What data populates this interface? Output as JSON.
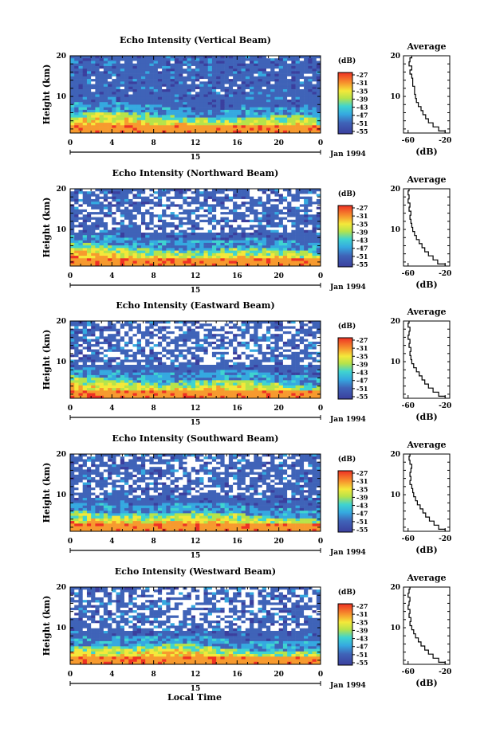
{
  "figure": {
    "xlabel": "Local Time",
    "date_label": "Jan 1994",
    "day_label": "15",
    "colorbar_unit": "(dB)",
    "colorbar_ticks": [
      "-27",
      "-31",
      "-35",
      "-39",
      "-43",
      "-47",
      "-51",
      "-55"
    ],
    "colors": {
      "deep_blue": "#3a4fa3",
      "cyan": "#35c9e0",
      "yellow": "#f4e83a",
      "orange": "#f79a2e",
      "red": "#ee3124"
    }
  },
  "chart_data": [
    {
      "type": "heatmap",
      "title": "Echo Intensity (Vertical Beam)",
      "ylabel": "Height (km)",
      "x_ticks": [
        "0",
        "4",
        "8",
        "12",
        "16",
        "20",
        "0"
      ],
      "y_ticks": [
        "20",
        "10"
      ],
      "xlim": [
        0,
        24
      ],
      "ylim": [
        1,
        20
      ],
      "colorbar": {
        "label": "(dB)",
        "range": [
          -55,
          -27
        ]
      },
      "white_fraction_upper": 0.05,
      "average_profile": {
        "title": "Average",
        "xlabel": "(dB)",
        "x_ticks": [
          "-60",
          "-20"
        ],
        "y_ticks": [
          "20",
          "10"
        ],
        "xlim": [
          -65,
          -15
        ],
        "height": [
          1,
          2,
          3,
          4,
          5,
          6,
          7,
          8,
          9,
          10,
          11,
          12,
          13,
          14,
          15,
          16,
          17,
          18,
          19,
          20
        ],
        "values": [
          -20,
          -27,
          -33,
          -38,
          -41,
          -44,
          -46,
          -49,
          -51,
          -52,
          -53,
          -53,
          -55,
          -55,
          -56,
          -58,
          -56,
          -59,
          -58,
          -56
        ]
      }
    },
    {
      "type": "heatmap",
      "title": "Echo Intensity (Northward Beam)",
      "ylabel": "Height (km)",
      "x_ticks": [
        "0",
        "4",
        "8",
        "12",
        "16",
        "20",
        "0"
      ],
      "y_ticks": [
        "20",
        "10"
      ],
      "xlim": [
        0,
        24
      ],
      "ylim": [
        1,
        20
      ],
      "colorbar": {
        "label": "(dB)",
        "range": [
          -55,
          -27
        ]
      },
      "white_fraction_upper": 0.35,
      "average_profile": {
        "title": "Average",
        "xlabel": "(dB)",
        "x_ticks": [
          "-60",
          "-20"
        ],
        "y_ticks": [
          "20",
          "10"
        ],
        "xlim": [
          -65,
          -15
        ],
        "height": [
          1,
          2,
          3,
          4,
          5,
          6,
          7,
          8,
          9,
          10,
          11,
          12,
          13,
          14,
          15,
          16,
          17,
          18,
          19,
          20
        ],
        "values": [
          -20,
          -28,
          -33,
          -38,
          -42,
          -45,
          -48,
          -51,
          -53,
          -55,
          -56,
          -57,
          -58,
          -57,
          -59,
          -58,
          -60,
          -59,
          -60,
          -59
        ]
      }
    },
    {
      "type": "heatmap",
      "title": "Echo Intensity (Eastward Beam)",
      "ylabel": "Height (km)",
      "x_ticks": [
        "0",
        "4",
        "8",
        "12",
        "16",
        "20",
        "0"
      ],
      "y_ticks": [
        "20",
        "10"
      ],
      "xlim": [
        0,
        24
      ],
      "ylim": [
        1,
        20
      ],
      "colorbar": {
        "label": "(dB)",
        "range": [
          -55,
          -27
        ]
      },
      "white_fraction_upper": 0.4,
      "average_profile": {
        "title": "Average",
        "xlabel": "(dB)",
        "x_ticks": [
          "-60",
          "-20"
        ],
        "y_ticks": [
          "20",
          "10"
        ],
        "xlim": [
          -65,
          -15
        ],
        "height": [
          1,
          2,
          3,
          4,
          5,
          6,
          7,
          8,
          9,
          10,
          11,
          12,
          13,
          14,
          15,
          16,
          17,
          18,
          19,
          20
        ],
        "values": [
          -20,
          -27,
          -33,
          -38,
          -42,
          -45,
          -48,
          -51,
          -54,
          -56,
          -57,
          -58,
          -57,
          -59,
          -58,
          -60,
          -59,
          -58,
          -60,
          -59
        ]
      }
    },
    {
      "type": "heatmap",
      "title": "Echo Intensity (Southward Beam)",
      "ylabel": "Height (km)",
      "x_ticks": [
        "0",
        "4",
        "8",
        "12",
        "16",
        "20",
        "0"
      ],
      "y_ticks": [
        "20",
        "10"
      ],
      "xlim": [
        0,
        24
      ],
      "ylim": [
        1,
        20
      ],
      "colorbar": {
        "label": "(dB)",
        "range": [
          -55,
          -27
        ]
      },
      "white_fraction_upper": 0.3,
      "average_profile": {
        "title": "Average",
        "xlabel": "(dB)",
        "x_ticks": [
          "-60",
          "-20"
        ],
        "y_ticks": [
          "20",
          "10"
        ],
        "xlim": [
          -65,
          -15
        ],
        "height": [
          1,
          2,
          3,
          4,
          5,
          6,
          7,
          8,
          9,
          10,
          11,
          12,
          13,
          14,
          15,
          16,
          17,
          18,
          19,
          20
        ],
        "values": [
          -20,
          -27,
          -32,
          -37,
          -41,
          -44,
          -47,
          -50,
          -52,
          -54,
          -55,
          -56,
          -58,
          -57,
          -58,
          -57,
          -56,
          -58,
          -59,
          -58
        ]
      }
    },
    {
      "type": "heatmap",
      "title": "Echo Intensity (Westward Beam)",
      "ylabel": "Height (km)",
      "x_ticks": [
        "0",
        "4",
        "8",
        "12",
        "16",
        "20",
        "0"
      ],
      "y_ticks": [
        "20",
        "10"
      ],
      "xlim": [
        0,
        24
      ],
      "ylim": [
        1,
        20
      ],
      "colorbar": {
        "label": "(dB)",
        "range": [
          -55,
          -27
        ]
      },
      "white_fraction_upper": 0.4,
      "average_profile": {
        "title": "Average",
        "xlabel": "(dB)",
        "x_ticks": [
          "-60",
          "-20"
        ],
        "y_ticks": [
          "20",
          "10"
        ],
        "xlim": [
          -65,
          -15
        ],
        "height": [
          1,
          2,
          3,
          4,
          5,
          6,
          7,
          8,
          9,
          10,
          11,
          12,
          13,
          14,
          15,
          16,
          17,
          18,
          19,
          20
        ],
        "values": [
          -20,
          -27,
          -33,
          -38,
          -42,
          -46,
          -49,
          -52,
          -54,
          -56,
          -58,
          -57,
          -59,
          -58,
          -60,
          -59,
          -58,
          -60,
          -59,
          -58
        ]
      }
    }
  ]
}
